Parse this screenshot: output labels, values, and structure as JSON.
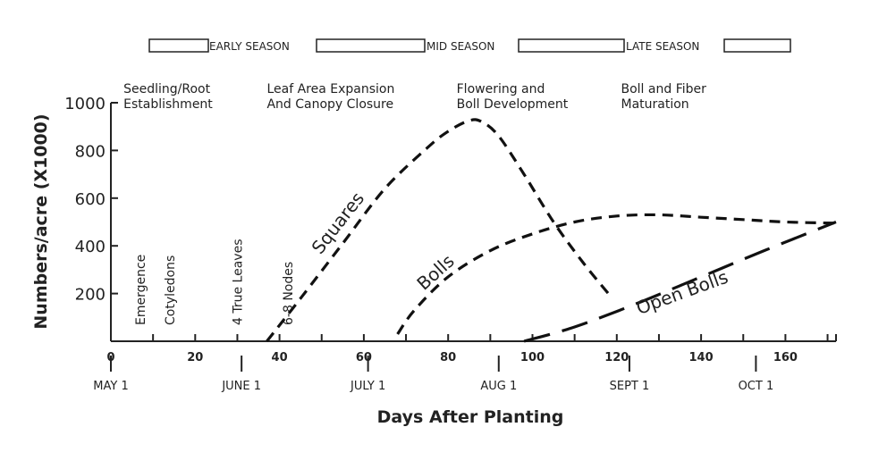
{
  "chart_data": {
    "type": "line",
    "title": "",
    "xlabel": "Days After Planting",
    "ylabel": "Numbers/acre (X1000)",
    "xlim": [
      0,
      172
    ],
    "ylim": [
      0,
      1000
    ],
    "grid": false,
    "legend": "none",
    "x_ticks": [
      "0",
      "20",
      "40",
      "60",
      "80",
      "100",
      "120",
      "140",
      "160"
    ],
    "y_ticks": [
      "200",
      "400",
      "600",
      "800",
      "1000"
    ],
    "date_labels": [
      {
        "label": "MAY 1",
        "day": 0
      },
      {
        "label": "JUNE 1",
        "day": 31
      },
      {
        "label": "JULY 1",
        "day": 61
      },
      {
        "label": "AUG 1",
        "day": 92
      },
      {
        "label": "SEPT 1",
        "day": 123
      },
      {
        "label": "OCT 1",
        "day": 153
      }
    ],
    "seasons": [
      "EARLY SEASON",
      "MID SEASON",
      "LATE SEASON"
    ],
    "stages": [
      {
        "label": "Seedling/Root\nEstablishment",
        "day": 3
      },
      {
        "label": "Leaf Area Expansion\nAnd Canopy Closure",
        "day": 37
      },
      {
        "label": "Flowering and\nBoll Development",
        "day": 82
      },
      {
        "label": "Boll and Fiber\nMaturation",
        "day": 121
      }
    ],
    "events": [
      {
        "label": "Emergence",
        "day": 7
      },
      {
        "label": "Cotyledons",
        "day": 14
      },
      {
        "label": "4 True Leaves",
        "day": 30
      },
      {
        "label": "6-8 Nodes",
        "day": 42
      }
    ],
    "series": [
      {
        "name": "Squares",
        "x": [
          37,
          45,
          55,
          65,
          75,
          80,
          85,
          88,
          92,
          98,
          105,
          112,
          118
        ],
        "y": [
          0,
          180,
          410,
          640,
          810,
          880,
          925,
          920,
          860,
          700,
          500,
          330,
          200
        ],
        "label_day": 55,
        "label_value": 480,
        "label_angle": -52
      },
      {
        "name": "Bolls",
        "x": [
          68,
          72,
          80,
          90,
          100,
          110,
          120,
          130,
          140,
          150,
          160,
          172
        ],
        "y": [
          30,
          130,
          270,
          380,
          450,
          500,
          525,
          530,
          520,
          510,
          500,
          495
        ],
        "label_day": 78,
        "label_value": 270,
        "label_angle": -42
      },
      {
        "name": "Open Bolls",
        "x": [
          98,
          110,
          125,
          140,
          155,
          172
        ],
        "y": [
          0,
          60,
          160,
          270,
          380,
          500
        ],
        "label_day": 136,
        "label_value": 180,
        "label_angle": -20
      }
    ]
  }
}
